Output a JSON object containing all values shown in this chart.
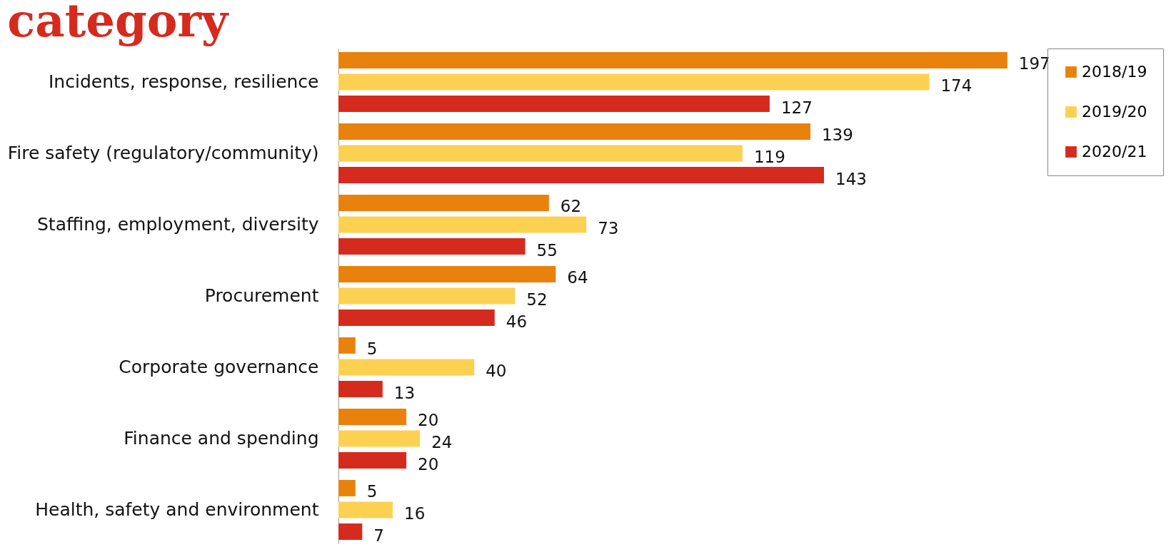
{
  "chart_data": {
    "type": "bar",
    "orientation": "horizontal",
    "title": "category",
    "data_labels": true,
    "legend": "right",
    "grid": false,
    "categories": [
      "Incidents, response, resilience",
      "Fire safety (regulatory/community)",
      "Staffing, employment, diversity",
      "Procurement",
      "Corporate governance",
      "Finance and spending",
      "Health, safety and environment"
    ],
    "series": [
      {
        "name": "2018/19",
        "color": "#e8820c",
        "values": [
          197,
          139,
          62,
          64,
          5,
          20,
          5
        ]
      },
      {
        "name": "2019/20",
        "color": "#fcd152",
        "values": [
          174,
          119,
          73,
          52,
          40,
          24,
          16
        ]
      },
      {
        "name": "2020/21",
        "color": "#d52b1e",
        "values": [
          127,
          143,
          55,
          46,
          13,
          20,
          7
        ]
      }
    ]
  }
}
